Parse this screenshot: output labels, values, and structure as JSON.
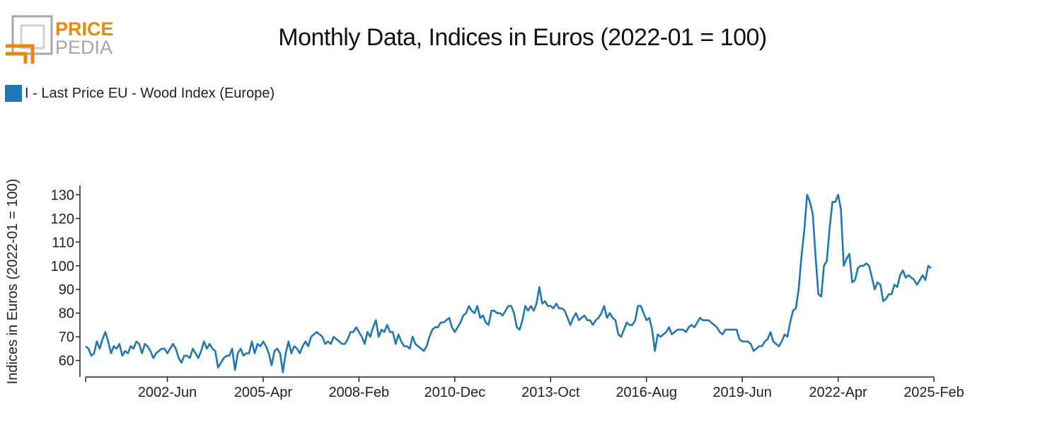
{
  "logo": {
    "word1": "PRICE",
    "word2": "PEDIA"
  },
  "colors": {
    "series": "#1f77b4",
    "logo_accent": "#e8890c",
    "logo_gray": "#a7a7a7"
  },
  "chart_data": {
    "type": "line",
    "title": "Monthly Data, Indices in Euros (2022-01 = 100)",
    "ylabel": "Indices in Euros (2022-01 = 100)",
    "xlabel": "",
    "ylim": [
      53,
      134
    ],
    "yticks": [
      60,
      70,
      80,
      90,
      100,
      110,
      120,
      130
    ],
    "x_range": [
      "2000-01",
      "2025-02"
    ],
    "x_tick_labels": [
      "2002-Jun",
      "2005-Apr",
      "2008-Feb",
      "2010-Dec",
      "2013-Oct",
      "2016-Aug",
      "2019-Jun",
      "2022-Apr",
      "2025-Feb"
    ],
    "grid": false,
    "legend_position": "top-left",
    "series": [
      {
        "name": "I - Last Price EU - Wood Index (Europe)",
        "start": "2000-01",
        "frequency": "monthly",
        "values": [
          66,
          65,
          62,
          63,
          68,
          65,
          69,
          72,
          68,
          63,
          66,
          65,
          67,
          62,
          64,
          63,
          66,
          65,
          68,
          67,
          63,
          67,
          66,
          64,
          61,
          63,
          64,
          65,
          65,
          63,
          65,
          67,
          65,
          61,
          59,
          62,
          62,
          61,
          65,
          63,
          61,
          64,
          68,
          65,
          67,
          65,
          64,
          57,
          59,
          61,
          62,
          62,
          65,
          56,
          63,
          65,
          62,
          63,
          63,
          68,
          63,
          67,
          66,
          68,
          66,
          63,
          58,
          64,
          65,
          63,
          55,
          63,
          68,
          63,
          66,
          65,
          63,
          66,
          68,
          66,
          70,
          71,
          72,
          71,
          70,
          67,
          68,
          67,
          70,
          69,
          68,
          67,
          67,
          69,
          72,
          72,
          74,
          72,
          70,
          67,
          72,
          70,
          74,
          77,
          70,
          73,
          72,
          75,
          72,
          72,
          67,
          71,
          68,
          66,
          66,
          65,
          70,
          67,
          66,
          65,
          64,
          66,
          70,
          73,
          74,
          74,
          76,
          76,
          77,
          78,
          74,
          72,
          74,
          76,
          79,
          80,
          83,
          81,
          80,
          83,
          78,
          79,
          76,
          75,
          81,
          81,
          80,
          80,
          79,
          81,
          83,
          83,
          80,
          74,
          73,
          77,
          83,
          81,
          83,
          81,
          84,
          91,
          84,
          85,
          83,
          83,
          82,
          84,
          82,
          82,
          81,
          78,
          75,
          78,
          80,
          77,
          78,
          79,
          77,
          77,
          75,
          77,
          78,
          80,
          83,
          78,
          80,
          78,
          77,
          71,
          70,
          73,
          76,
          75,
          75,
          77,
          83,
          83,
          80,
          77,
          78,
          73,
          64,
          71,
          70,
          71,
          72,
          74,
          71,
          72,
          73,
          73,
          73,
          72,
          74,
          75,
          74,
          76,
          78,
          77,
          77,
          77,
          76,
          75,
          74,
          72,
          71,
          73,
          73,
          73,
          73,
          73,
          69,
          68,
          68,
          68,
          67,
          64,
          65,
          66,
          66,
          68,
          69,
          72,
          68,
          67,
          66,
          68,
          71,
          70,
          76,
          81,
          82,
          90,
          104,
          115,
          130,
          127,
          122,
          104,
          88,
          87,
          100,
          102,
          116,
          127,
          127,
          130,
          124,
          100,
          103,
          105,
          93,
          94,
          99,
          100,
          100,
          101,
          100,
          95,
          90,
          93,
          92,
          85,
          86,
          88,
          88,
          92,
          91,
          96,
          98,
          95,
          96,
          95,
          94,
          92,
          94,
          96,
          94,
          100,
          99
        ]
      }
    ]
  }
}
